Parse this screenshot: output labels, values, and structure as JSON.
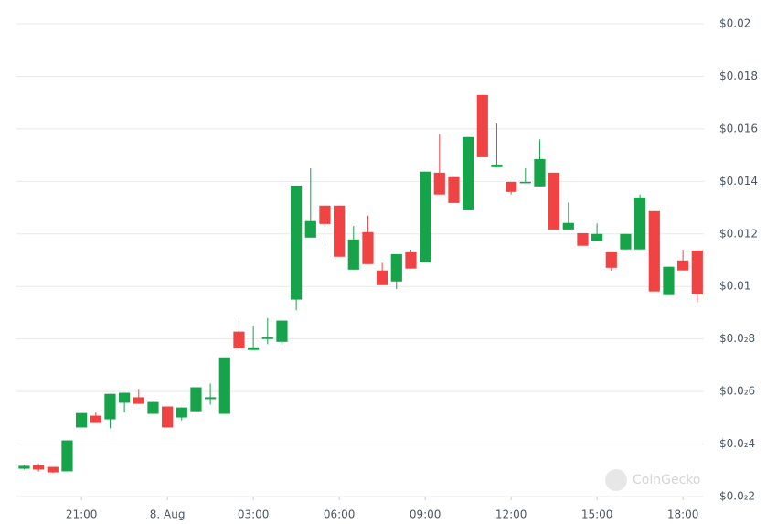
{
  "chart_data": {
    "type": "candlestick",
    "x": [
      19,
      19.5,
      20,
      20.5,
      21,
      21.5,
      22,
      22.5,
      23,
      23.5,
      24,
      24.5,
      25,
      25.5,
      26,
      26.5,
      27,
      27.5,
      28,
      28.5,
      29,
      29.5,
      30,
      30.5,
      31,
      31.5,
      32,
      32.5,
      33,
      33.5,
      34,
      34.5,
      35,
      35.5,
      36,
      36.5,
      37,
      37.5,
      38,
      38.5,
      39,
      39.5,
      40,
      40.5,
      41,
      41.5,
      42,
      42.5
    ],
    "open": [
      0.00306,
      0.0032,
      0.00313,
      0.00296,
      0.00463,
      0.00508,
      0.00494,
      0.00557,
      0.00578,
      0.00515,
      0.00543,
      0.00501,
      0.00525,
      0.00571,
      0.00515,
      0.00828,
      0.00758,
      0.008,
      0.00789,
      0.0095,
      0.01186,
      0.01308,
      0.01308,
      0.01064,
      0.01207,
      0.01061,
      0.01019,
      0.0113,
      0.01092,
      0.01433,
      0.01416,
      0.0129,
      0.01729,
      0.01454,
      0.01398,
      0.01395,
      0.01381,
      0.01433,
      0.01217,
      0.01203,
      0.01172,
      0.0113,
      0.01141,
      0.01141,
      0.01287,
      0.00967,
      0.01099,
      0.01137
    ],
    "high": [
      0.0032,
      0.00325,
      0.00313,
      0.00414,
      0.00518,
      0.0052,
      0.00591,
      0.00595,
      0.0061,
      0.0056,
      0.00543,
      0.00539,
      0.00616,
      0.0063,
      0.0073,
      0.0087,
      0.0085,
      0.0088,
      0.0087,
      0.01384,
      0.0145,
      0.01308,
      0.01308,
      0.0123,
      0.0127,
      0.0109,
      0.01123,
      0.0114,
      0.01437,
      0.0158,
      0.01416,
      0.01569,
      0.01729,
      0.0162,
      0.01398,
      0.0145,
      0.0156,
      0.01433,
      0.0132,
      0.01203,
      0.0124,
      0.0113,
      0.012,
      0.0135,
      0.01287,
      0.01075,
      0.0114,
      0.01137
    ],
    "low": [
      0.00303,
      0.00295,
      0.0029,
      0.00296,
      0.00463,
      0.0048,
      0.0046,
      0.0052,
      0.00553,
      0.00515,
      0.00463,
      0.0049,
      0.00525,
      0.0055,
      0.00515,
      0.0076,
      0.00758,
      0.0078,
      0.0078,
      0.0091,
      0.01186,
      0.0117,
      0.01113,
      0.01064,
      0.01085,
      0.01005,
      0.0099,
      0.01068,
      0.01092,
      0.0135,
      0.01318,
      0.0129,
      0.01492,
      0.01454,
      0.0135,
      0.01395,
      0.01381,
      0.01217,
      0.01217,
      0.01155,
      0.01172,
      0.0106,
      0.01141,
      0.01141,
      0.00981,
      0.00967,
      0.01061,
      0.0094
    ],
    "close": [
      0.00317,
      0.00303,
      0.00292,
      0.00414,
      0.00518,
      0.0048,
      0.00591,
      0.00595,
      0.00553,
      0.0056,
      0.00463,
      0.00539,
      0.00616,
      0.00578,
      0.0073,
      0.00765,
      0.00768,
      0.00807,
      0.0087,
      0.01384,
      0.01249,
      0.01238,
      0.01113,
      0.01179,
      0.01085,
      0.01005,
      0.01123,
      0.01068,
      0.01437,
      0.0135,
      0.01318,
      0.01569,
      0.01492,
      0.01464,
      0.0136,
      0.01398,
      0.01485,
      0.01217,
      0.01242,
      0.01155,
      0.012,
      0.01071,
      0.012,
      0.01339,
      0.00981,
      0.01075,
      0.01061,
      0.0097
    ],
    "up_color": "#17a34a",
    "down_color": "#f04444",
    "xlim": [
      18.73,
      42.73
    ],
    "xticks": [
      {
        "value": 21,
        "label": "21:00"
      },
      {
        "value": 24,
        "label": "8. Aug"
      },
      {
        "value": 27,
        "label": "03:00"
      },
      {
        "value": 30,
        "label": "06:00"
      },
      {
        "value": 33,
        "label": "09:00"
      },
      {
        "value": 36,
        "label": "12:00"
      },
      {
        "value": 39,
        "label": "15:00"
      },
      {
        "value": 42,
        "label": "18:00"
      }
    ],
    "ylim": [
      0.002,
      0.02
    ],
    "yticks": [
      {
        "value": 0.002,
        "label": "$0.0₂2"
      },
      {
        "value": 0.004,
        "label": "$0.0₂4"
      },
      {
        "value": 0.006,
        "label": "$0.0₂6"
      },
      {
        "value": 0.008,
        "label": "$0.0₂8"
      },
      {
        "value": 0.01,
        "label": "$0.01"
      },
      {
        "value": 0.012,
        "label": "$0.012"
      },
      {
        "value": 0.014,
        "label": "$0.014"
      },
      {
        "value": 0.016,
        "label": "$0.016"
      },
      {
        "value": 0.018,
        "label": "$0.018"
      },
      {
        "value": 0.02,
        "label": "$0.02"
      }
    ],
    "grid": true,
    "watermark": "CoinGecko"
  }
}
